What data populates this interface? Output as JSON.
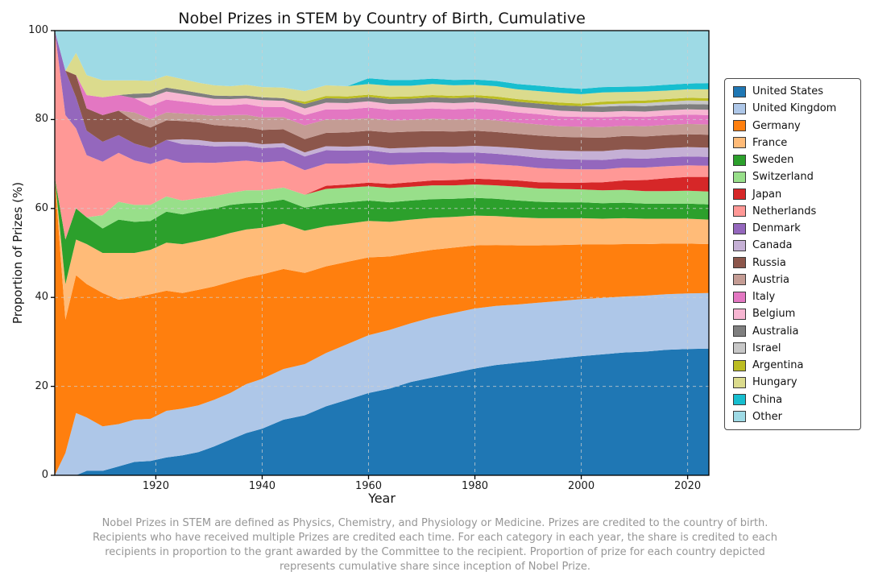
{
  "chart_data": {
    "type": "area",
    "stacked": true,
    "title": "Nobel Prizes in STEM by Country of Birth, Cumulative",
    "xlabel": "Year",
    "ylabel": "Proportion of Prizes (%)",
    "xlim": [
      1901,
      2024
    ],
    "ylim": [
      0,
      100
    ],
    "x_ticks": [
      1920,
      1940,
      1960,
      1980,
      2000,
      2020
    ],
    "y_ticks": [
      0,
      20,
      40,
      60,
      80,
      100
    ],
    "grid": "dashed",
    "legend_position": "right",
    "x": [
      1901,
      1903,
      1905,
      1907,
      1910,
      1913,
      1916,
      1919,
      1922,
      1925,
      1928,
      1931,
      1934,
      1937,
      1940,
      1944,
      1948,
      1952,
      1956,
      1960,
      1964,
      1968,
      1972,
      1976,
      1980,
      1984,
      1988,
      1992,
      1996,
      2000,
      2004,
      2008,
      2012,
      2016,
      2020,
      2024
    ],
    "series": [
      {
        "name": "United States",
        "color": "#1f77b4",
        "values": [
          0,
          0,
          0,
          1,
          1,
          2,
          3,
          3.2,
          4,
          4.5,
          5.2,
          6.5,
          8,
          9.5,
          10.5,
          12.5,
          13.5,
          15.5,
          17,
          18.5,
          19.5,
          21,
          22,
          23,
          24,
          24.8,
          25.3,
          25.8,
          26.3,
          26.8,
          27.2,
          27.6,
          27.8,
          28.2,
          28.4,
          28.5
        ]
      },
      {
        "name": "United Kingdom",
        "color": "#aec7e8",
        "values": [
          0,
          5,
          14,
          12,
          10,
          9.5,
          9.5,
          9.5,
          10.5,
          10.5,
          10.5,
          10.5,
          10.5,
          11,
          11.2,
          11.4,
          11.5,
          12,
          12.5,
          13,
          13.2,
          13.2,
          13.5,
          13.5,
          13.5,
          13.3,
          13.1,
          13,
          12.9,
          12.8,
          12.7,
          12.6,
          12.6,
          12.5,
          12.5,
          12.5
        ]
      },
      {
        "name": "Germany",
        "color": "#ff7f0e",
        "values": [
          67,
          30,
          31,
          30,
          30,
          28,
          27.5,
          28,
          27,
          26,
          26,
          25.5,
          25,
          24,
          23.5,
          22.5,
          20.5,
          19.5,
          18.5,
          17.5,
          16.5,
          15.8,
          15.2,
          14.7,
          14.2,
          13.7,
          13.3,
          12.9,
          12.6,
          12.3,
          12,
          11.8,
          11.6,
          11.4,
          11.2,
          11
        ]
      },
      {
        "name": "France",
        "color": "#ffbb78",
        "values": [
          0,
          8,
          8,
          9,
          9,
          10.5,
          10,
          10,
          10.8,
          11,
          11,
          11,
          11,
          10.8,
          10.5,
          10.2,
          9.5,
          9,
          8.6,
          8.2,
          7.8,
          7.5,
          7.2,
          6.9,
          6.7,
          6.5,
          6.3,
          6.1,
          6,
          5.9,
          5.8,
          5.8,
          5.7,
          5.6,
          5.6,
          5.5
        ]
      },
      {
        "name": "Sweden",
        "color": "#2ca02c",
        "values": [
          0,
          10,
          7,
          6,
          5.5,
          7.5,
          7,
          6.5,
          7,
          6.7,
          6.7,
          6.5,
          6.3,
          5.9,
          5.6,
          5.4,
          5.2,
          5,
          4.8,
          4.6,
          4.4,
          4.3,
          4.2,
          4.1,
          4,
          3.9,
          3.8,
          3.7,
          3.6,
          3.6,
          3.5,
          3.5,
          3.4,
          3.4,
          3.4,
          3.4
        ]
      },
      {
        "name": "Switzerland",
        "color": "#98df8a",
        "values": [
          0,
          0,
          0,
          0,
          3,
          4,
          3.8,
          3.6,
          3.4,
          3.1,
          2.9,
          2.8,
          2.7,
          2.9,
          2.8,
          2.7,
          2.9,
          3.4,
          3.3,
          3.2,
          3.2,
          3.1,
          3.1,
          3,
          3,
          3,
          3.1,
          3,
          3,
          2.9,
          2.9,
          2.9,
          2.8,
          2.8,
          2.9,
          2.9
        ]
      },
      {
        "name": "Japan",
        "color": "#d62728",
        "values": [
          0,
          0,
          0,
          0,
          0,
          0,
          0,
          0,
          0,
          0,
          0,
          0,
          0,
          0,
          0,
          0,
          0,
          0.7,
          0.7,
          0.8,
          0.9,
          1,
          1.1,
          1.2,
          1.3,
          1.3,
          1.4,
          1.4,
          1.4,
          1.5,
          1.8,
          2.1,
          2.5,
          2.9,
          3.1,
          3.3
        ]
      },
      {
        "name": "Netherlands",
        "color": "#ff9896",
        "values": [
          33,
          28,
          18,
          14,
          12,
          11,
          10,
          9.2,
          8.5,
          8.5,
          8,
          7.5,
          7,
          6.7,
          6.3,
          6,
          5.5,
          5,
          4.7,
          4.5,
          4.3,
          4.1,
          3.9,
          3.7,
          3.5,
          3.4,
          3.3,
          3.2,
          3.1,
          3,
          2.9,
          2.9,
          2.8,
          2.7,
          2.6,
          2.5
        ]
      },
      {
        "name": "Denmark",
        "color": "#9467bd",
        "values": [
          0,
          10,
          7,
          5.5,
          4.5,
          4,
          3.8,
          3.6,
          4.2,
          4.2,
          4,
          3.7,
          3.5,
          3.3,
          3.2,
          3.1,
          3.1,
          3,
          2.9,
          2.8,
          2.7,
          2.6,
          2.5,
          2.5,
          2.4,
          2.4,
          2.3,
          2.3,
          2.2,
          2.2,
          2.1,
          2.1,
          2,
          2,
          2,
          2
        ]
      },
      {
        "name": "Canada",
        "color": "#c5b0d5",
        "values": [
          0,
          0,
          0,
          0,
          0,
          0,
          0,
          0,
          0,
          1.1,
          1.1,
          1,
          1,
          0.9,
          0.9,
          0.9,
          0.9,
          0.9,
          0.9,
          1,
          1,
          1.1,
          1.2,
          1.3,
          1.5,
          1.6,
          1.7,
          1.8,
          1.9,
          1.9,
          2,
          2,
          2,
          2.1,
          2.1,
          2.1
        ]
      },
      {
        "name": "Russia",
        "color": "#8c564b",
        "values": [
          0,
          0,
          5,
          5,
          6,
          5.5,
          5,
          4.6,
          4.4,
          4.1,
          4,
          3.8,
          3.5,
          3.3,
          3.2,
          3.1,
          3,
          3,
          3.2,
          3.4,
          3.6,
          3.6,
          3.5,
          3.4,
          3.4,
          3.3,
          3.2,
          3.2,
          3.1,
          3.1,
          3,
          3,
          3,
          2.9,
          2.9,
          2.9
        ]
      },
      {
        "name": "Austria",
        "color": "#c49c94",
        "values": [
          0,
          0,
          0,
          0,
          0,
          0,
          2,
          1.9,
          1.8,
          1.7,
          1.7,
          2.1,
          2.5,
          2.8,
          2.8,
          2.7,
          3.1,
          3,
          2.9,
          2.8,
          2.7,
          2.6,
          2.8,
          2.7,
          2.6,
          2.6,
          2.5,
          2.5,
          2.4,
          2.4,
          2.4,
          2.3,
          2.3,
          2.3,
          2.3,
          2.3
        ]
      },
      {
        "name": "Italy",
        "color": "#e377c2",
        "values": [
          0,
          0,
          0,
          3,
          4,
          3.5,
          3.2,
          3,
          2.9,
          2.7,
          2.5,
          2.3,
          2.2,
          2.4,
          2.4,
          2.3,
          2.3,
          2.3,
          2.3,
          2.4,
          2.4,
          2.4,
          2.3,
          2.3,
          2.4,
          2.4,
          2.3,
          2.3,
          2.2,
          2.2,
          2.2,
          2.1,
          2.1,
          2.1,
          2.1,
          2.1
        ]
      },
      {
        "name": "Belgium",
        "color": "#f7b6d2",
        "values": [
          0,
          0,
          0,
          0,
          0,
          0,
          0,
          1.9,
          1.8,
          1.7,
          1.6,
          1.5,
          1.4,
          1.3,
          1.5,
          1.4,
          1.5,
          1.5,
          1.4,
          1.4,
          1.3,
          1.3,
          1.4,
          1.4,
          1.4,
          1.3,
          1.3,
          1.3,
          1.3,
          1.2,
          1.2,
          1.2,
          1.2,
          1.2,
          1.2,
          1.2
        ]
      },
      {
        "name": "Australia",
        "color": "#7f7f7f",
        "values": [
          0,
          0,
          0,
          0,
          0,
          0,
          1,
          0.9,
          0.9,
          0.85,
          0.8,
          0.75,
          0.7,
          0.65,
          0.65,
          0.6,
          1,
          1,
          1,
          1,
          1.1,
          1.1,
          1.1,
          1.1,
          1.1,
          1.1,
          1.1,
          1.1,
          1.2,
          1.2,
          1.2,
          1.2,
          1.2,
          1.2,
          1.2,
          1.2
        ]
      },
      {
        "name": "Israel",
        "color": "#c7c7c7",
        "values": [
          0,
          0,
          0,
          0,
          0,
          0,
          0,
          0,
          0,
          0,
          0,
          0,
          0,
          0,
          0,
          0,
          0,
          0,
          0,
          0,
          0,
          0,
          0,
          0,
          0,
          0,
          0,
          0,
          0,
          0,
          0.5,
          0.5,
          0.7,
          0.7,
          0.8,
          0.8
        ]
      },
      {
        "name": "Argentina",
        "color": "#bcbd22",
        "values": [
          0,
          0,
          0,
          0,
          0,
          0,
          0,
          0,
          0,
          0,
          0,
          0,
          0,
          0,
          0,
          0,
          0.5,
          0.5,
          0.5,
          0.5,
          0.5,
          0.5,
          0.5,
          0.5,
          0.5,
          0.6,
          0.6,
          0.6,
          0.6,
          0.6,
          0.6,
          0.6,
          0.6,
          0.6,
          0.6,
          0.6
        ]
      },
      {
        "name": "Hungary",
        "color": "#dbdb8d",
        "values": [
          0,
          0,
          5,
          4.5,
          3.8,
          3.3,
          3,
          2.8,
          2.7,
          2.5,
          2.3,
          2.3,
          2.2,
          2.4,
          2.3,
          2.4,
          2.4,
          2.4,
          2.3,
          2.4,
          2.5,
          2.4,
          2.5,
          2.4,
          2.3,
          2.3,
          2.2,
          2.2,
          2.2,
          2.1,
          2.1,
          2,
          2,
          1.9,
          1.9,
          2
        ]
      },
      {
        "name": "China",
        "color": "#17becf",
        "values": [
          0,
          0,
          0,
          0,
          0,
          0,
          0,
          0,
          0,
          0,
          0,
          0,
          0,
          0,
          0,
          0,
          0,
          0,
          0,
          1.3,
          1.3,
          1.3,
          1.2,
          1.2,
          1.2,
          1.2,
          1.2,
          1.2,
          1.2,
          1.2,
          1.2,
          1.2,
          1.2,
          1.3,
          1.3,
          1.4
        ]
      },
      {
        "name": "Other",
        "color": "#9edae5",
        "values": [
          0,
          9,
          5,
          10,
          11.2,
          11.2,
          11.2,
          11.3,
          10.1,
          10.9,
          11.7,
          12.3,
          12.5,
          12.2,
          12.7,
          12.8,
          13.6,
          12.3,
          12.5,
          10.7,
          11.1,
          11.1,
          10.8,
          11.1,
          11,
          11.3,
          12,
          12.4,
          12.8,
          13.1,
          12.7,
          12.6,
          12.5,
          12.2,
          11.9,
          11.8
        ]
      }
    ]
  },
  "caption": {
    "lines": [
      "Nobel Prizes in STEM are defined as Physics, Chemistry, and Physiology or Medicine. Prizes are credited to the country of birth.",
      "Recipients who have received multiple Prizes are credited each time. For each category in each year, the share is credited to each",
      "recipients in proportion to the grant awarded by the Committee to the recipient. Proportion of prize for each country depicted",
      "represents cumulative share since inception of Nobel Prize."
    ]
  }
}
